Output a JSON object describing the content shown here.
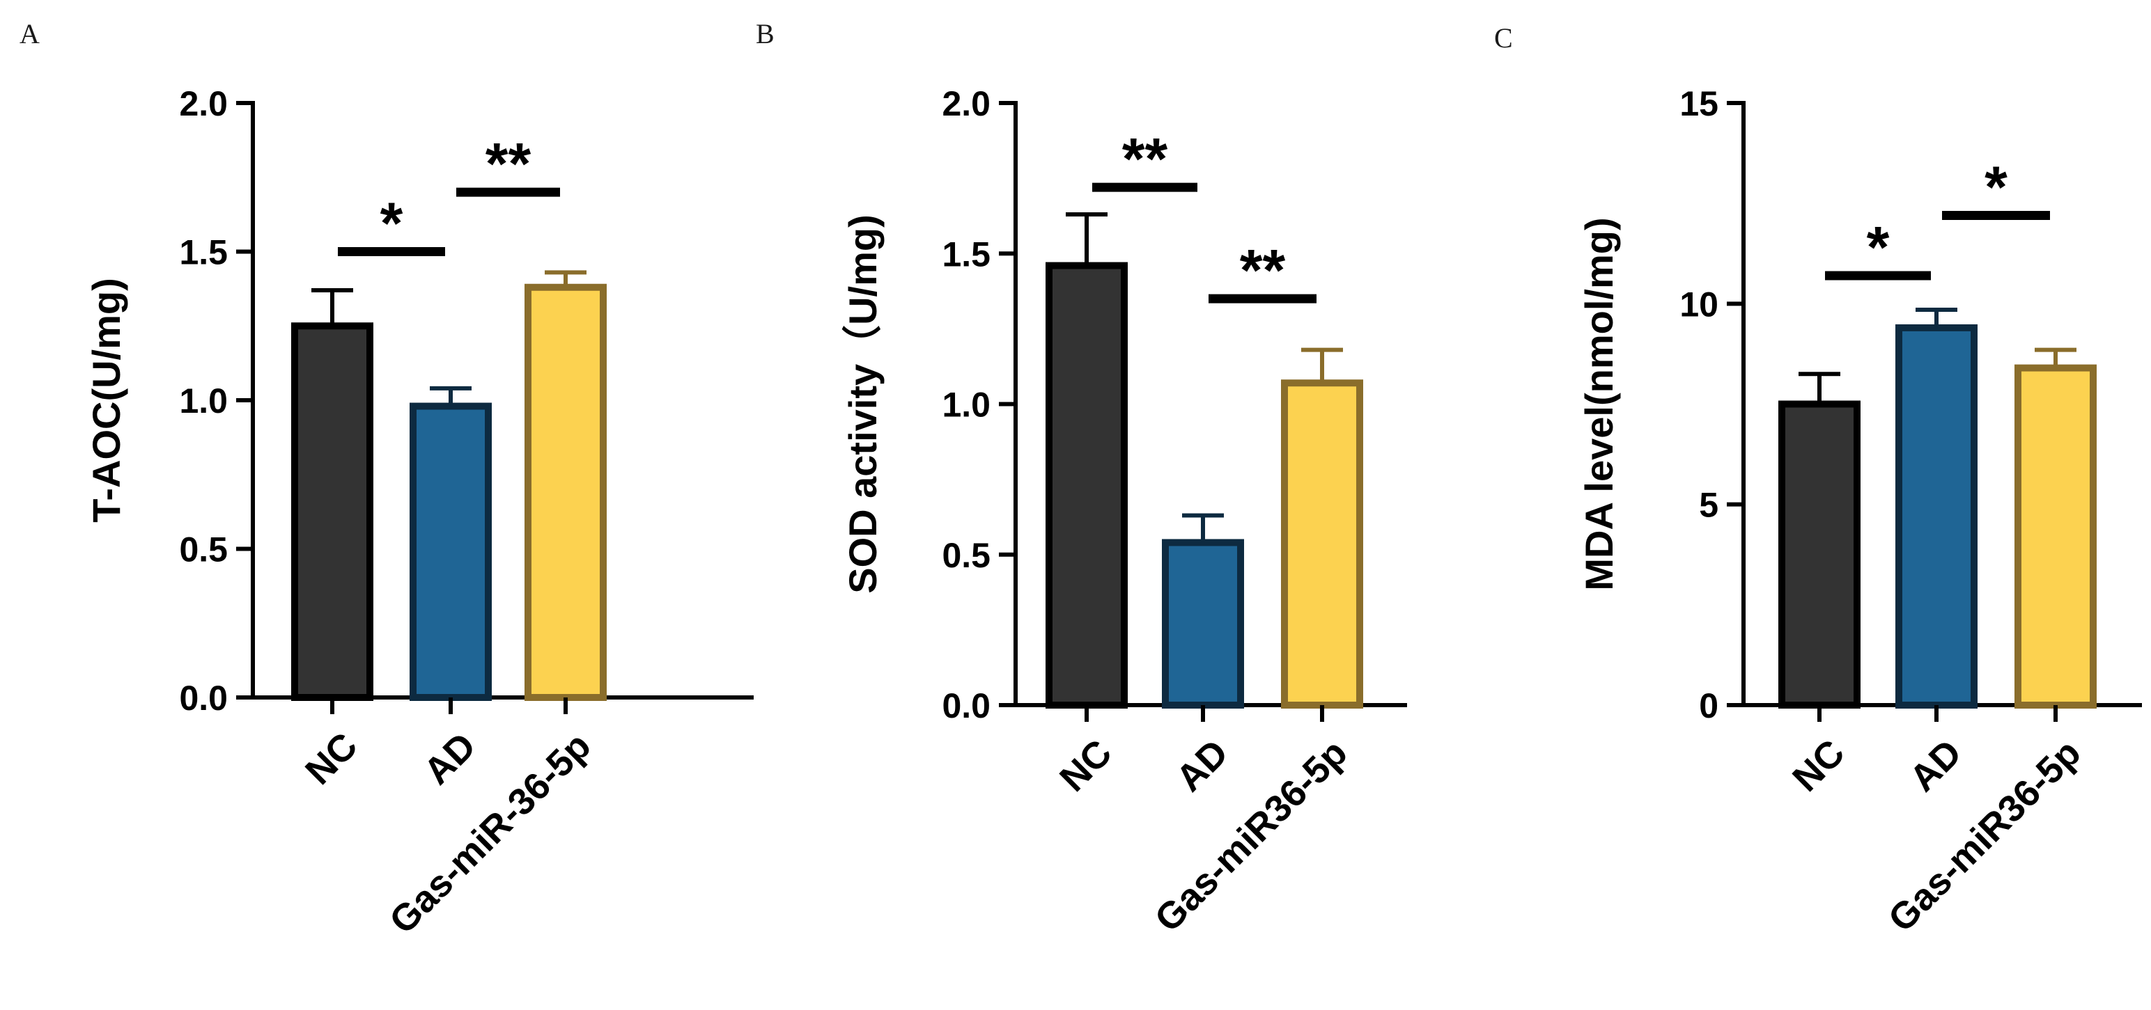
{
  "chart_data": [
    {
      "type": "bar",
      "panel": "A",
      "categories": [
        "NC",
        "AD",
        "Gas-miR-36-5p"
      ],
      "values": [
        1.25,
        0.98,
        1.38
      ],
      "errors": [
        0.12,
        0.06,
        0.05
      ],
      "colors": [
        {
          "fill": "#333333",
          "stroke": "#000000"
        },
        {
          "fill": "#1f6595",
          "stroke": "#0d2a40"
        },
        {
          "fill": "#fcd250",
          "stroke": "#8a6d2b"
        }
      ],
      "title": "",
      "xlabel": "",
      "ylabel": "T-AOC(U/mg)",
      "ylim": [
        0,
        2.0
      ],
      "yticks": [
        0,
        0.5,
        1.0,
        1.5,
        2.0
      ],
      "ytick_labels": [
        "0.0",
        "0.5",
        "1.0",
        "1.5",
        "2.0"
      ],
      "significance": [
        {
          "from": 0,
          "to": 1,
          "y": 1.5,
          "label": "*"
        },
        {
          "from": 1,
          "to": 2,
          "y": 1.7,
          "label": "**"
        }
      ]
    },
    {
      "type": "bar",
      "panel": "B",
      "categories": [
        "NC",
        "AD",
        "Gas-miR36-5p"
      ],
      "values": [
        1.46,
        0.54,
        1.07
      ],
      "errors": [
        0.17,
        0.09,
        0.11
      ],
      "colors": [
        {
          "fill": "#333333",
          "stroke": "#000000"
        },
        {
          "fill": "#1f6595",
          "stroke": "#0d2a40"
        },
        {
          "fill": "#fcd250",
          "stroke": "#8a6d2b"
        }
      ],
      "title": "",
      "xlabel": "",
      "ylabel": "SOD  activity（U/mg)",
      "ylim": [
        0,
        2.0
      ],
      "yticks": [
        0,
        0.5,
        1.0,
        1.5,
        2.0
      ],
      "ytick_labels": [
        "0.0",
        "0.5",
        "1.0",
        "1.5",
        "2.0"
      ],
      "significance": [
        {
          "from": 0,
          "to": 1,
          "y": 1.72,
          "label": "**"
        },
        {
          "from": 1,
          "to": 2,
          "y": 1.35,
          "label": "**"
        }
      ]
    },
    {
      "type": "bar",
      "panel": "C",
      "categories": [
        "NC",
        "AD",
        "Gas-miR36-5p"
      ],
      "values": [
        7.5,
        9.4,
        8.4
      ],
      "errors": [
        0.75,
        0.45,
        0.45
      ],
      "colors": [
        {
          "fill": "#333333",
          "stroke": "#000000"
        },
        {
          "fill": "#1f6595",
          "stroke": "#0d2a40"
        },
        {
          "fill": "#fcd250",
          "stroke": "#8a6d2b"
        }
      ],
      "title": "",
      "xlabel": "",
      "ylabel": "MDA level(nmol/mg)",
      "ylim": [
        0,
        15
      ],
      "yticks": [
        0,
        5,
        10,
        15
      ],
      "ytick_labels": [
        "0",
        "5",
        "10",
        "15"
      ],
      "significance": [
        {
          "from": 0,
          "to": 1,
          "y": 10.7,
          "label": "*"
        },
        {
          "from": 1,
          "to": 2,
          "y": 12.2,
          "label": "*"
        }
      ]
    }
  ]
}
